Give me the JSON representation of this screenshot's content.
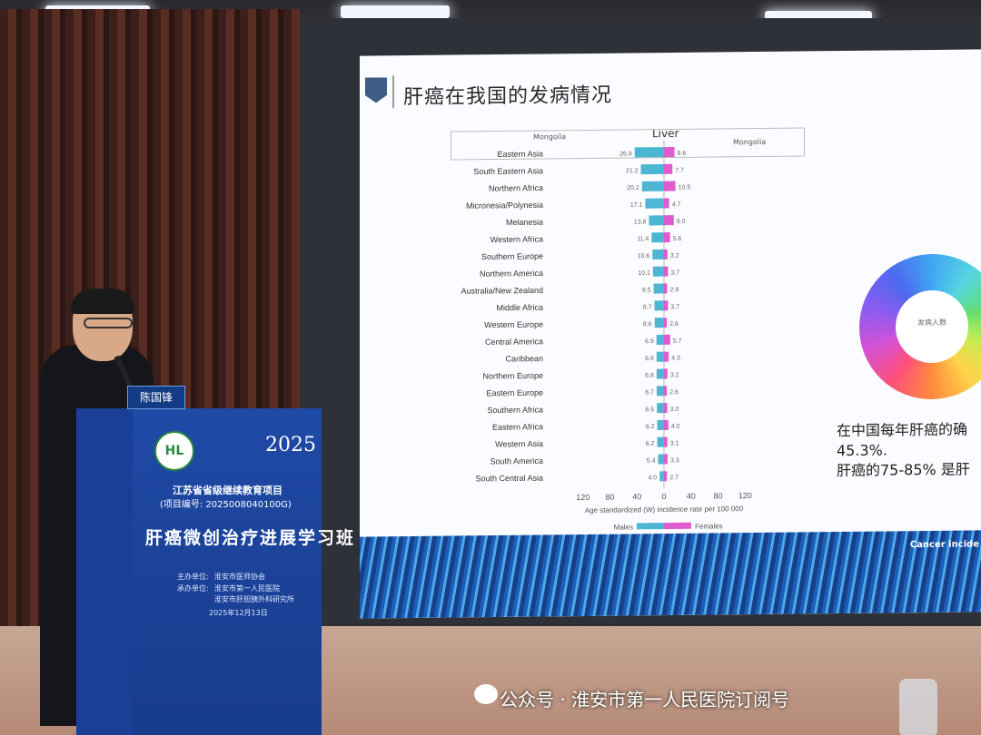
{
  "slide": {
    "title": "肝癌在我国的发病情况",
    "chart_title": "Liver",
    "tag_left": "Mongolia",
    "tag_right": "Mongolia",
    "x_axis_label": "Age standardized (W) incidence rate per 100 000",
    "legend_males": "Males",
    "legend_females": "Females",
    "cn_text_line1": "在中国每年肝癌的确",
    "cn_text_line2": "45.3%.",
    "cn_text_line3": "肝癌的75-85% 是肝",
    "footer_text": "Cancer incide",
    "donut_center": "发病人数"
  },
  "chart_data": {
    "type": "bar",
    "title": "Liver",
    "xlabel": "Age standardized (W) incidence rate per 100 000",
    "x_ticks": [
      "120",
      "80",
      "40",
      "0",
      "40",
      "80",
      "120"
    ],
    "categories": [
      "Eastern Asia",
      "South Eastern Asia",
      "Northern Africa",
      "Micronesia/Polynesia",
      "Melanesia",
      "Western Africa",
      "Southern Europe",
      "Northern America",
      "Australia/New Zealand",
      "Middle Africa",
      "Western Europe",
      "Central America",
      "Caribbean",
      "Northern Europe",
      "Eastern Europe",
      "Southern Africa",
      "Eastern Africa",
      "Western Asia",
      "South America",
      "South Central Asia"
    ],
    "series": [
      {
        "name": "Males",
        "values": [
          26.9,
          21.2,
          20.2,
          17.1,
          13.8,
          11.4,
          10.6,
          10.1,
          9.5,
          8.7,
          8.6,
          6.9,
          6.8,
          6.8,
          6.7,
          6.5,
          6.2,
          6.2,
          5.4,
          4.0
        ]
      },
      {
        "name": "Females",
        "values": [
          9.6,
          7.7,
          10.5,
          4.7,
          9.0,
          5.6,
          3.2,
          3.7,
          2.9,
          3.7,
          2.6,
          5.7,
          4.3,
          3.2,
          2.6,
          3.0,
          4.0,
          3.1,
          3.3,
          2.7
        ]
      }
    ],
    "xlim": [
      -120,
      120
    ],
    "colors": {
      "males": "#4db6d3",
      "females": "#e05ad0"
    }
  },
  "podium": {
    "nameplate": "陈国锋",
    "project": "江苏省省级继续教育项目",
    "project_code": "(项目编号: 2025008040100G)",
    "course": "肝癌微创治疗进展学习班",
    "year": "2025",
    "host_label": "主办单位:",
    "host": "淮安市医师协会",
    "organizer_label": "承办单位:",
    "organizer1": "淮安市第一人民医院",
    "organizer2": "淮安市肝胆胰外科研究所",
    "date": "2025年12月13日",
    "logo": "HL"
  },
  "watermark": "公众号 · 淮安市第一人民医院订阅号"
}
